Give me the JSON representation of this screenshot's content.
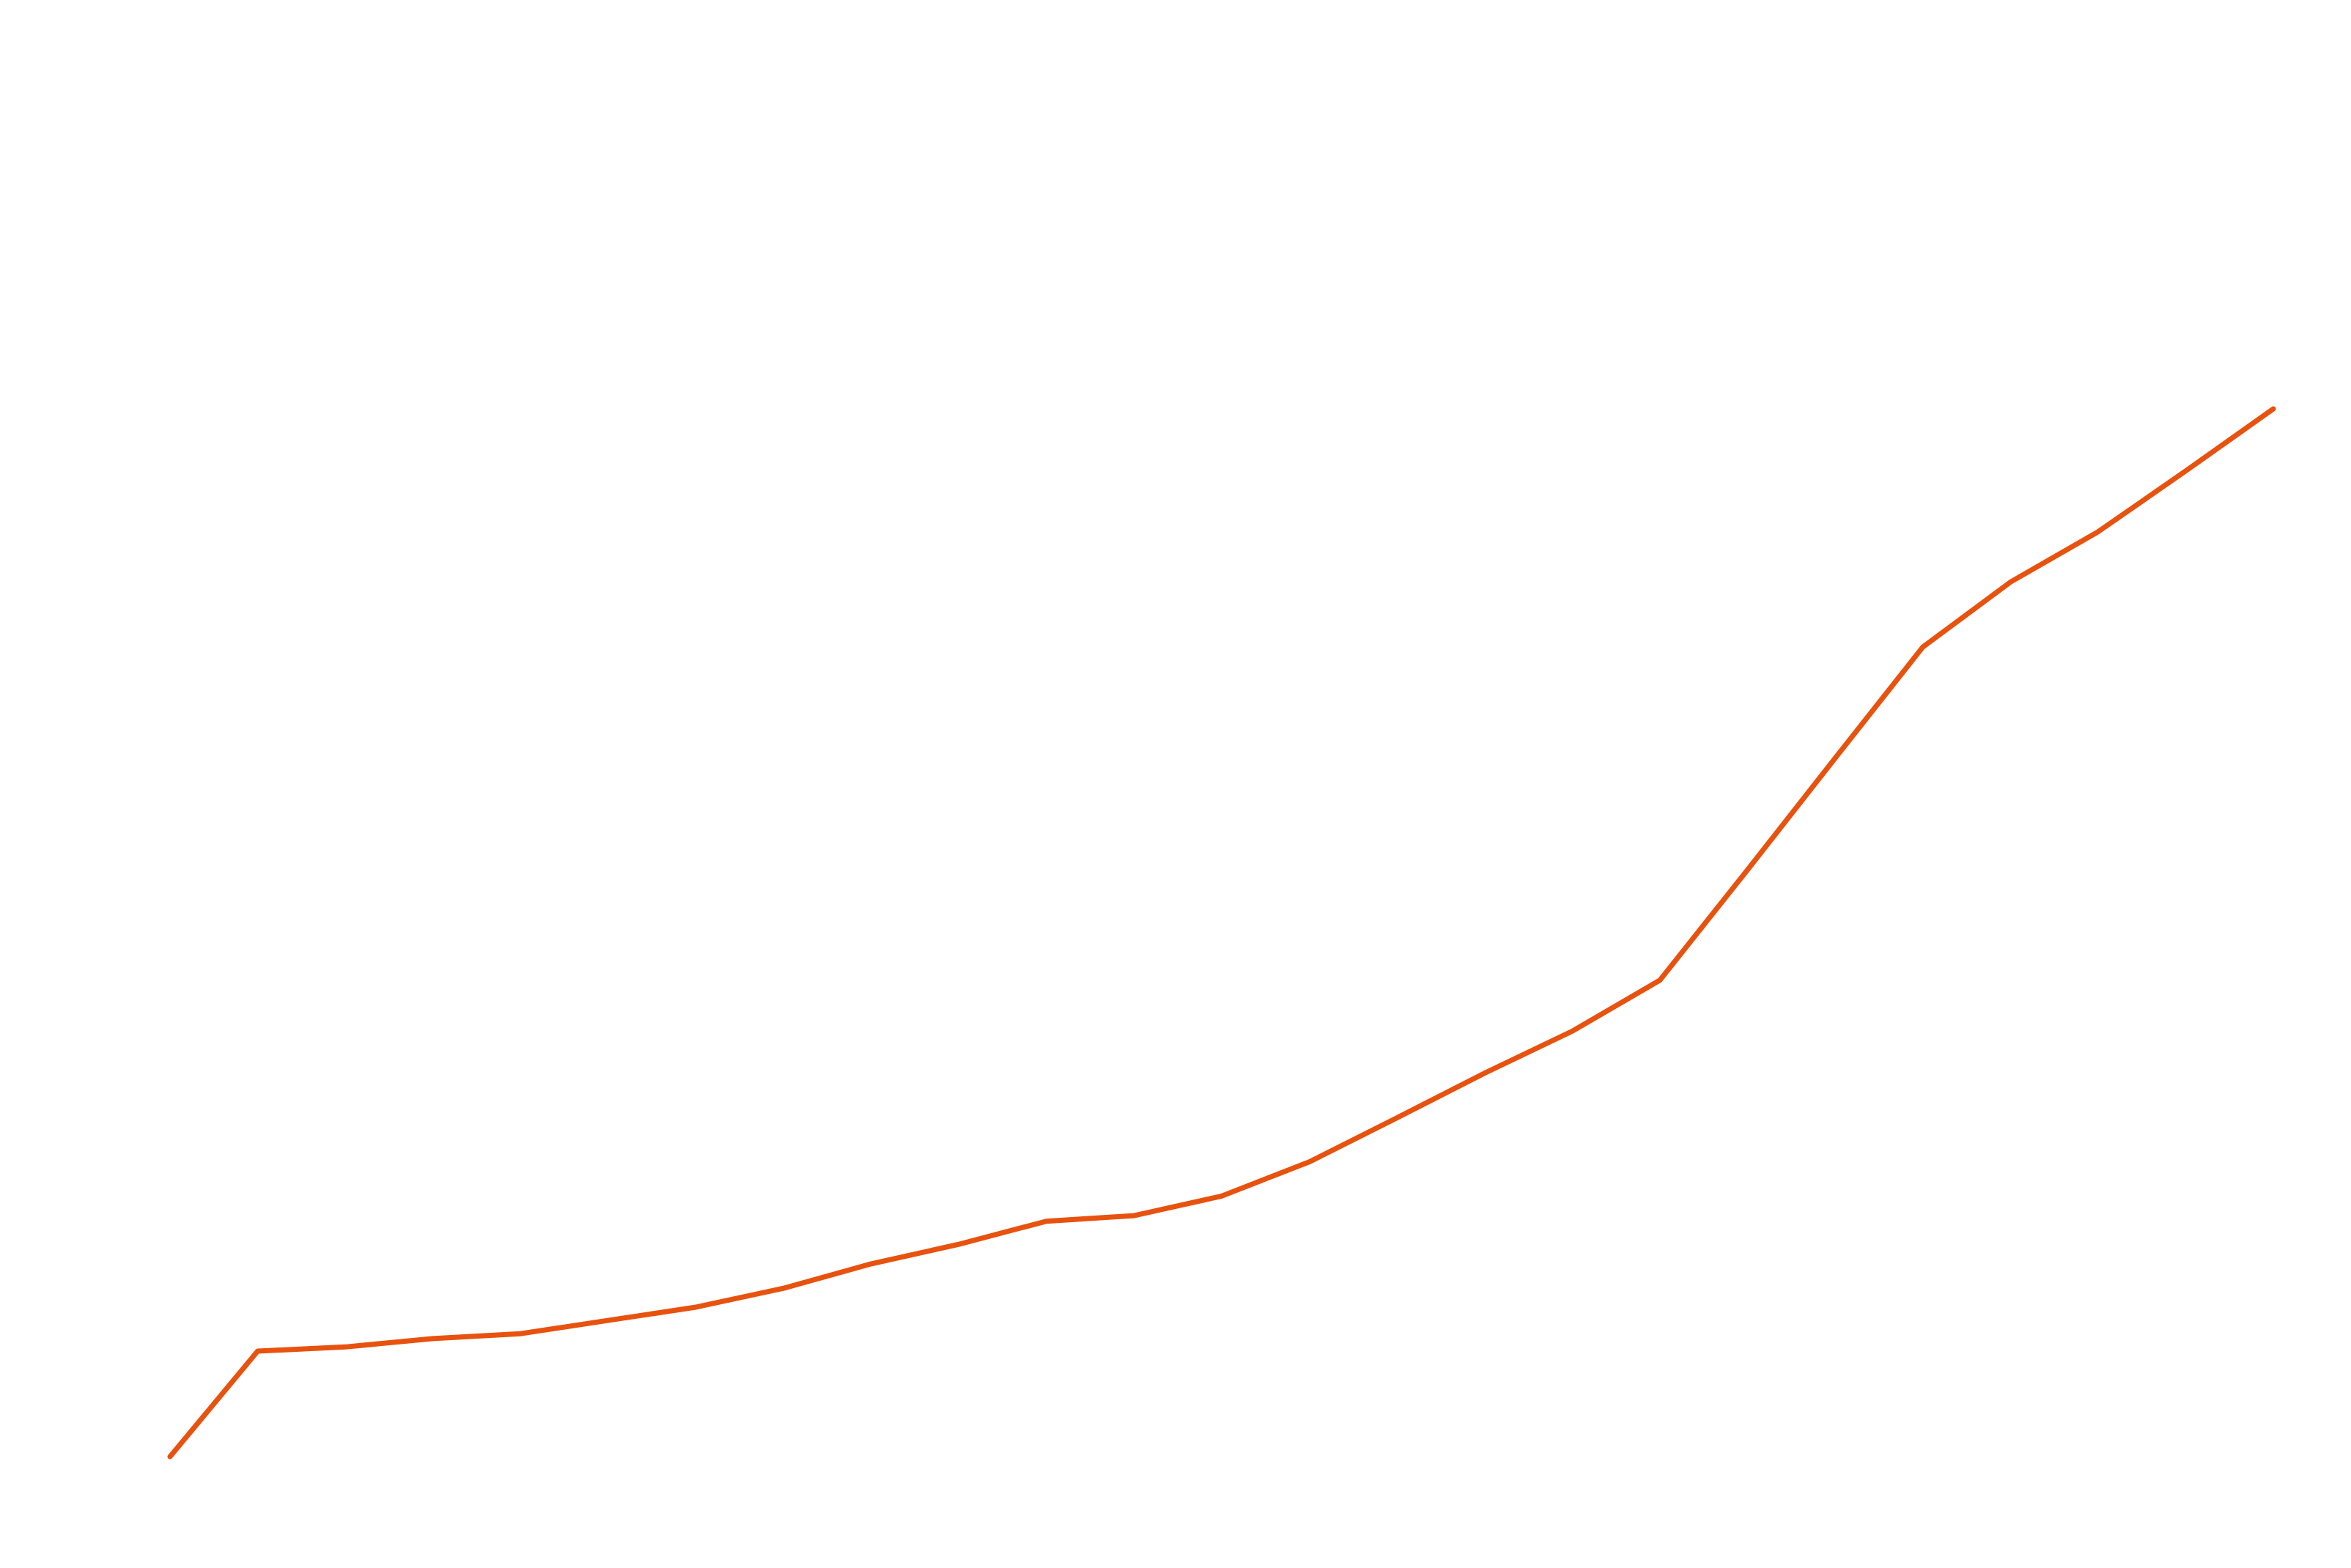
{
  "chart_data": {
    "type": "line",
    "title": "",
    "xlabel": "",
    "ylabel": "",
    "x": [
      1,
      2,
      3,
      4,
      5,
      6,
      7,
      8,
      9,
      10,
      11,
      12,
      13,
      14,
      15,
      16,
      17,
      18,
      19,
      20,
      21,
      22,
      23,
      24,
      25
    ],
    "series": [
      {
        "values": [
          100.0,
          115.1,
          115.7,
          116.9,
          117.6,
          119.5,
          121.4,
          124.1,
          127.6,
          130.4,
          133.7,
          134.5,
          137.3,
          142.2,
          148.5,
          154.9,
          160.9,
          168.2,
          184.0,
          200.0,
          215.9,
          225.2,
          232.4,
          241.1,
          250.0
        ],
        "color": "#e8520f"
      }
    ],
    "xlim": [
      1,
      25
    ],
    "ylim": [
      100,
      250
    ],
    "grid": false,
    "axes_visible": false
  }
}
